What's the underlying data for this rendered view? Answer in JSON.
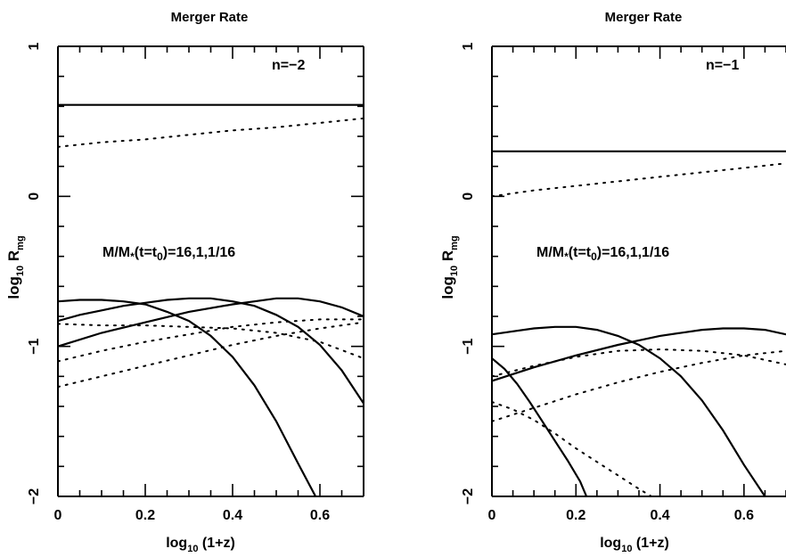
{
  "chart_data": [
    {
      "type": "line",
      "title": "Merger Rate",
      "xlabel": "log10 (1+z)",
      "ylabel": "log10 Rmg",
      "xlim": [
        0,
        0.7
      ],
      "ylim": [
        -2,
        1
      ],
      "xticks": [
        0,
        0.2,
        0.4,
        0.6
      ],
      "xtick_labels": [
        "0",
        "0.2",
        "0.4",
        "0.6"
      ],
      "yticks": [
        -2,
        -1,
        0,
        1
      ],
      "ytick_labels": [
        "−2",
        "−1",
        "0",
        "1"
      ],
      "annotations": [
        "n=−2",
        "M/M*(t=t0)=16,1,1/16"
      ],
      "grid": false,
      "series": [
        {
          "style": "solid",
          "x": [
            0,
            0.7
          ],
          "y": [
            0.61,
            0.61
          ]
        },
        {
          "style": "dotted",
          "x": [
            0,
            0.1,
            0.2,
            0.3,
            0.4,
            0.5,
            0.6,
            0.7
          ],
          "y": [
            0.33,
            0.36,
            0.38,
            0.41,
            0.44,
            0.46,
            0.49,
            0.52
          ]
        },
        {
          "style": "solid",
          "x": [
            0,
            0.05,
            0.1,
            0.15,
            0.2,
            0.25,
            0.3,
            0.35,
            0.4,
            0.45,
            0.5,
            0.55,
            0.59
          ],
          "y": [
            -0.7,
            -0.69,
            -0.69,
            -0.7,
            -0.72,
            -0.77,
            -0.83,
            -0.93,
            -1.07,
            -1.26,
            -1.5,
            -1.78,
            -2.0
          ]
        },
        {
          "style": "solid",
          "x": [
            0,
            0.05,
            0.1,
            0.15,
            0.2,
            0.25,
            0.3,
            0.35,
            0.4,
            0.45,
            0.5,
            0.55,
            0.6,
            0.65,
            0.7
          ],
          "y": [
            -0.83,
            -0.79,
            -0.76,
            -0.73,
            -0.71,
            -0.69,
            -0.68,
            -0.68,
            -0.7,
            -0.73,
            -0.79,
            -0.87,
            -0.99,
            -1.16,
            -1.38
          ]
        },
        {
          "style": "solid",
          "x": [
            0,
            0.1,
            0.2,
            0.3,
            0.4,
            0.45,
            0.5,
            0.55,
            0.6,
            0.65,
            0.7
          ],
          "y": [
            -1.0,
            -0.91,
            -0.84,
            -0.77,
            -0.72,
            -0.7,
            -0.68,
            -0.68,
            -0.7,
            -0.74,
            -0.8
          ]
        },
        {
          "style": "dotted",
          "x": [
            0,
            0.1,
            0.2,
            0.3,
            0.4,
            0.5,
            0.6,
            0.7
          ],
          "y": [
            -0.85,
            -0.86,
            -0.86,
            -0.87,
            -0.88,
            -0.91,
            -0.97,
            -1.08
          ]
        },
        {
          "style": "dotted",
          "x": [
            0,
            0.1,
            0.2,
            0.3,
            0.4,
            0.5,
            0.6,
            0.7
          ],
          "y": [
            -1.1,
            -1.03,
            -0.97,
            -0.92,
            -0.87,
            -0.84,
            -0.82,
            -0.82
          ]
        },
        {
          "style": "dotted",
          "x": [
            0,
            0.1,
            0.2,
            0.3,
            0.4,
            0.5,
            0.6,
            0.7
          ],
          "y": [
            -1.27,
            -1.2,
            -1.13,
            -1.06,
            -0.99,
            -0.93,
            -0.88,
            -0.84
          ]
        }
      ]
    },
    {
      "type": "line",
      "title": "Merger Rate",
      "xlabel": "log10 (1+z)",
      "ylabel": "log10 Rmg",
      "xlim": [
        0,
        0.7
      ],
      "ylim": [
        -2,
        1
      ],
      "xticks": [
        0,
        0.2,
        0.4,
        0.6
      ],
      "xtick_labels": [
        "0",
        "0.2",
        "0.4",
        "0.6"
      ],
      "yticks": [
        -2,
        -1,
        0,
        1
      ],
      "ytick_labels": [
        "−2",
        "−1",
        "0",
        "1"
      ],
      "annotations": [
        "n=−1",
        "M/M*(t=t0)=16,1,1/16"
      ],
      "grid": false,
      "series": [
        {
          "style": "solid",
          "x": [
            0,
            0.7
          ],
          "y": [
            0.3,
            0.3
          ]
        },
        {
          "style": "dotted",
          "x": [
            0,
            0.1,
            0.2,
            0.3,
            0.4,
            0.5,
            0.6,
            0.7
          ],
          "y": [
            0.0,
            0.04,
            0.07,
            0.1,
            0.13,
            0.16,
            0.19,
            0.22
          ]
        },
        {
          "style": "solid",
          "x": [
            0,
            0.03,
            0.06,
            0.09,
            0.12,
            0.15,
            0.18,
            0.21,
            0.225
          ],
          "y": [
            -1.08,
            -1.15,
            -1.25,
            -1.37,
            -1.5,
            -1.63,
            -1.76,
            -1.9,
            -2.0
          ]
        },
        {
          "style": "solid",
          "x": [
            0,
            0.05,
            0.1,
            0.15,
            0.2,
            0.25,
            0.3,
            0.35,
            0.4,
            0.45,
            0.5,
            0.55,
            0.6,
            0.65
          ],
          "y": [
            -0.92,
            -0.9,
            -0.88,
            -0.87,
            -0.87,
            -0.89,
            -0.93,
            -0.99,
            -1.08,
            -1.2,
            -1.36,
            -1.56,
            -1.79,
            -2.0
          ]
        },
        {
          "style": "solid",
          "x": [
            0,
            0.1,
            0.2,
            0.3,
            0.4,
            0.5,
            0.55,
            0.6,
            0.65,
            0.7
          ],
          "y": [
            -1.23,
            -1.14,
            -1.06,
            -0.99,
            -0.93,
            -0.89,
            -0.88,
            -0.88,
            -0.89,
            -0.92
          ]
        },
        {
          "style": "dotted",
          "x": [
            0,
            0.05,
            0.1,
            0.15,
            0.2,
            0.25,
            0.3,
            0.35,
            0.38
          ],
          "y": [
            -1.37,
            -1.42,
            -1.49,
            -1.58,
            -1.68,
            -1.77,
            -1.86,
            -1.95,
            -2.0
          ]
        },
        {
          "style": "dotted",
          "x": [
            0,
            0.1,
            0.2,
            0.3,
            0.4,
            0.5,
            0.6,
            0.7
          ],
          "y": [
            -1.2,
            -1.13,
            -1.07,
            -1.03,
            -1.02,
            -1.03,
            -1.06,
            -1.12
          ]
        },
        {
          "style": "dotted",
          "x": [
            0,
            0.1,
            0.2,
            0.3,
            0.4,
            0.5,
            0.6,
            0.7
          ],
          "y": [
            -1.5,
            -1.41,
            -1.32,
            -1.24,
            -1.17,
            -1.11,
            -1.06,
            -1.03
          ]
        }
      ]
    }
  ]
}
